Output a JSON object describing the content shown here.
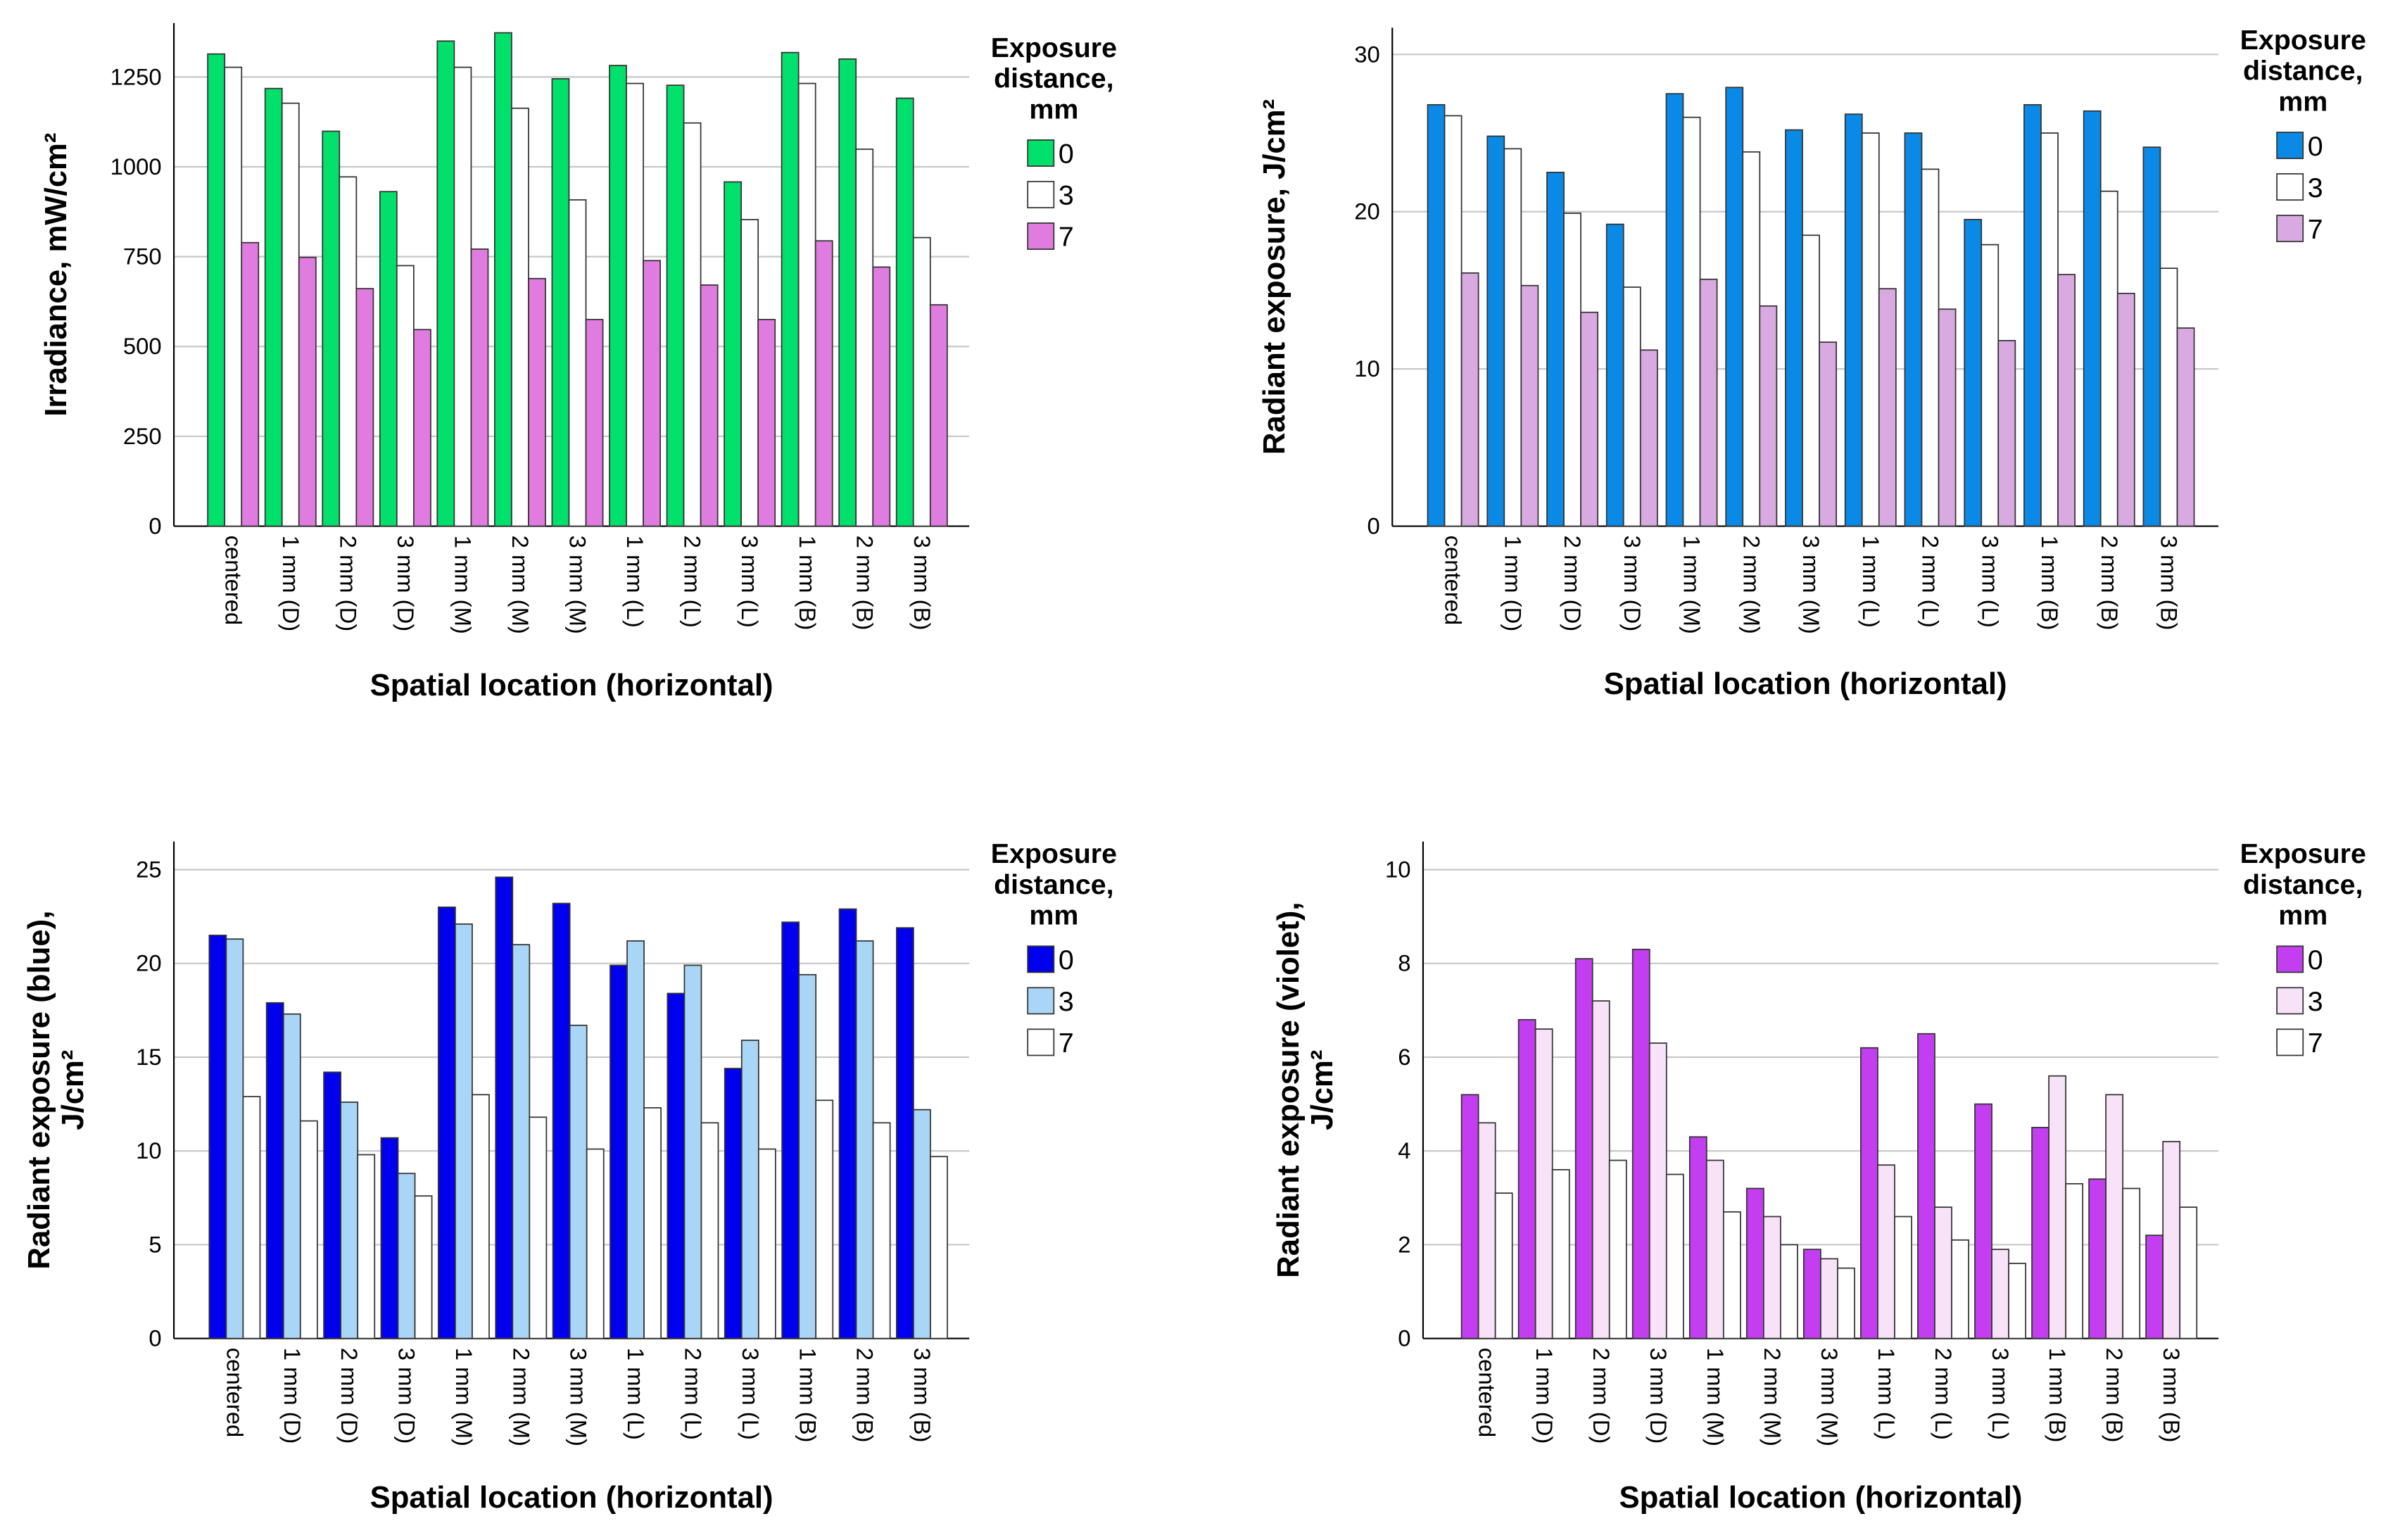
{
  "chart_data": [
    {
      "type": "bar",
      "title": "",
      "xlabel": "Spatial location (horizontal)",
      "ylabel": [
        "Irradiance, mW/cm²"
      ],
      "ylim": [
        0,
        1400
      ],
      "yticks": [
        0,
        250,
        500,
        750,
        1000,
        1250
      ],
      "grid": true,
      "legend": {
        "title": [
          "Exposure",
          "distance,",
          "mm"
        ],
        "placement": "right"
      },
      "categories": [
        "centered",
        "1 mm (D)",
        "2 mm (D)",
        "3 mm (D)",
        "1 mm (M)",
        "2 mm (M)",
        "3 mm (M)",
        "1 mm (L)",
        "2 mm (L)",
        "3 mm (L)",
        "1 mm (B)",
        "2 mm (B)",
        "3 mm (B)"
      ],
      "series": [
        {
          "name": "0",
          "color": "#00e06a",
          "values": [
            1314,
            1218,
            1099,
            931,
            1350,
            1373,
            1245,
            1282,
            1227,
            958,
            1318,
            1300,
            1191
          ]
        },
        {
          "name": "3",
          "color": "#ffffff",
          "values": [
            1277,
            1177,
            972,
            725,
            1277,
            1163,
            908,
            1232,
            1122,
            853,
            1232,
            1049,
            803
          ]
        },
        {
          "name": "7",
          "color": "#e07ce0",
          "values": [
            789,
            748,
            661,
            547,
            771,
            689,
            575,
            739,
            671,
            575,
            794,
            721,
            616
          ]
        }
      ]
    },
    {
      "type": "bar",
      "title": "",
      "xlabel": "Spatial location (horizontal)",
      "ylabel": [
        "Radiant exposure, J/cm²"
      ],
      "ylim": [
        0,
        31.7
      ],
      "yticks": [
        0,
        10,
        20,
        30
      ],
      "grid": true,
      "legend": {
        "title": [
          "Exposure",
          "distance,",
          "mm"
        ],
        "placement": "right"
      },
      "categories": [
        "centered",
        "1 mm (D)",
        "2 mm (D)",
        "3 mm (D)",
        "1 mm (M)",
        "2 mm (M)",
        "3 mm (M)",
        "1 mm (L)",
        "2 mm (L)",
        "3 mm (L)",
        "1 mm (B)",
        "2 mm (B)",
        "3 mm (B)"
      ],
      "series": [
        {
          "name": "0",
          "color": "#0a8ae6",
          "values": [
            26.8,
            24.8,
            22.5,
            19.2,
            27.5,
            27.9,
            25.2,
            26.2,
            25.0,
            19.5,
            26.8,
            26.4,
            24.1
          ]
        },
        {
          "name": "3",
          "color": "#ffffff",
          "values": [
            26.1,
            24.0,
            19.9,
            15.2,
            26.0,
            23.8,
            18.5,
            25.0,
            22.7,
            17.9,
            25.0,
            21.3,
            16.4
          ]
        },
        {
          "name": "7",
          "color": "#d9aae2",
          "values": [
            16.1,
            15.3,
            13.6,
            11.2,
            15.7,
            14.0,
            11.7,
            15.1,
            13.8,
            11.8,
            16.0,
            14.8,
            12.6
          ]
        }
      ]
    },
    {
      "type": "bar",
      "title": "",
      "xlabel": "Spatial location (horizontal)",
      "ylabel": [
        "Radiant exposure (blue),",
        "J/cm²"
      ],
      "ylim": [
        0,
        26.5
      ],
      "yticks": [
        0,
        5,
        10,
        15,
        20,
        25
      ],
      "grid": true,
      "legend": {
        "title": [
          "Exposure",
          "distance,",
          "mm"
        ],
        "placement": "right"
      },
      "categories": [
        "centered",
        "1 mm (D)",
        "2 mm (D)",
        "3 mm (D)",
        "1 mm (M)",
        "2 mm (M)",
        "3 mm (M)",
        "1 mm (L)",
        "2 mm (L)",
        "3 mm (L)",
        "1 mm (B)",
        "2 mm (B)",
        "3 mm (B)"
      ],
      "series": [
        {
          "name": "0",
          "color": "#0000ee",
          "values": [
            21.5,
            17.9,
            14.2,
            10.7,
            23.0,
            24.6,
            23.2,
            19.9,
            18.4,
            14.4,
            22.2,
            22.9,
            21.9
          ]
        },
        {
          "name": "3",
          "color": "#a9d6f7",
          "values": [
            21.3,
            17.3,
            12.6,
            8.8,
            22.1,
            21.0,
            16.7,
            21.2,
            19.9,
            15.9,
            19.4,
            21.2,
            12.2
          ]
        },
        {
          "name": "7",
          "color": "#ffffff",
          "values": [
            12.9,
            11.6,
            9.8,
            7.6,
            13.0,
            11.8,
            10.1,
            12.3,
            11.5,
            10.1,
            12.7,
            11.5,
            9.7
          ]
        }
      ]
    },
    {
      "type": "bar",
      "title": "",
      "xlabel": "Spatial location (horizontal)",
      "ylabel": [
        "Radiant exposure (violet),",
        "J/cm²"
      ],
      "ylim": [
        0,
        10.6
      ],
      "yticks": [
        0,
        2,
        4,
        6,
        8,
        10
      ],
      "grid": true,
      "legend": {
        "title": [
          "Exposure",
          "distance,",
          "mm"
        ],
        "placement": "right"
      },
      "categories": [
        "centered",
        "1 mm (D)",
        "2 mm (D)",
        "3 mm (D)",
        "1 mm (M)",
        "2 mm (M)",
        "3 mm (M)",
        "1 mm (L)",
        "2 mm (L)",
        "3 mm (L)",
        "1 mm (B)",
        "2 mm (B)",
        "3 mm (B)"
      ],
      "series": [
        {
          "name": "0",
          "color": "#c23ef0",
          "values": [
            5.2,
            6.8,
            8.1,
            8.3,
            4.3,
            3.2,
            1.9,
            6.2,
            6.5,
            5.0,
            4.5,
            3.4,
            2.2
          ]
        },
        {
          "name": "3",
          "color": "#f7e2f7",
          "values": [
            4.6,
            6.6,
            7.2,
            6.3,
            3.8,
            2.6,
            1.7,
            3.7,
            2.8,
            1.9,
            5.6,
            5.2,
            4.2
          ]
        },
        {
          "name": "7",
          "color": "#ffffff",
          "values": [
            3.1,
            3.6,
            3.8,
            3.5,
            2.7,
            2.0,
            1.5,
            2.6,
            2.1,
            1.6,
            3.3,
            3.2,
            2.8
          ]
        }
      ]
    }
  ]
}
